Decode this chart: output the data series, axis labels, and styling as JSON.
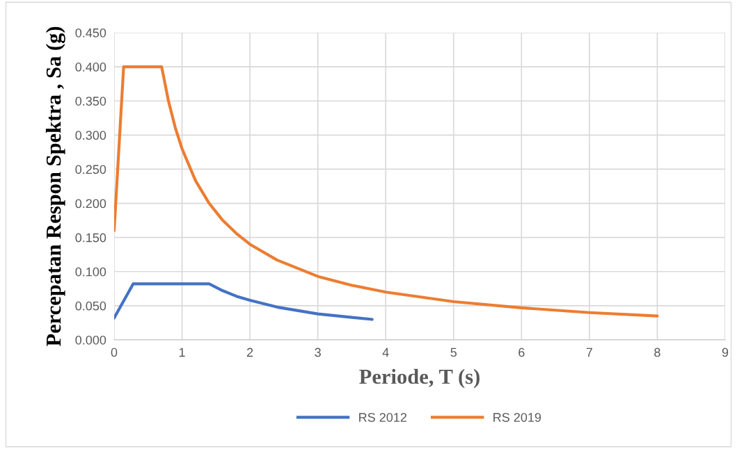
{
  "chart_data": {
    "type": "line",
    "xlabel": "Periode, T (s)",
    "ylabel": "Percepatan Respon Spektra , Sa (g)",
    "xlim": [
      0,
      9
    ],
    "xticks": [
      0,
      1,
      2,
      3,
      4,
      5,
      6,
      7,
      8,
      9
    ],
    "ylim": [
      0,
      0.45
    ],
    "yticks": [
      {
        "value": 0,
        "label": "0.000"
      },
      {
        "value": 0.05,
        "label": "0.050"
      },
      {
        "value": 0.1,
        "label": "0.100"
      },
      {
        "value": 0.15,
        "label": "0.150"
      },
      {
        "value": 0.2,
        "label": "0.200"
      },
      {
        "value": 0.25,
        "label": "0.250"
      },
      {
        "value": 0.3,
        "label": "0.300"
      },
      {
        "value": 0.35,
        "label": "0.350"
      },
      {
        "value": 0.4,
        "label": "0.400"
      },
      {
        "value": 0.45,
        "label": "0.450"
      }
    ],
    "grid": true,
    "legend": "bottom",
    "marker": "none",
    "line_style": "solid",
    "series": [
      {
        "name": "RS 2012",
        "color": "#4472c4",
        "x": [
          0,
          0.28,
          1.4,
          1.6,
          1.8,
          2.0,
          2.4,
          3.0,
          3.5,
          3.8
        ],
        "values": [
          0.032,
          0.082,
          0.082,
          0.072,
          0.064,
          0.058,
          0.048,
          0.038,
          0.033,
          0.03
        ]
      },
      {
        "name": "RS 2019",
        "color": "#ed7d31",
        "x": [
          0,
          0.14,
          0.7,
          0.8,
          0.9,
          1.0,
          1.2,
          1.4,
          1.6,
          1.8,
          2.0,
          2.4,
          3.0,
          3.5,
          4.0,
          5.0,
          6.0,
          7.0,
          8.0
        ],
        "values": [
          0.16,
          0.4,
          0.4,
          0.35,
          0.311,
          0.28,
          0.233,
          0.2,
          0.175,
          0.156,
          0.14,
          0.117,
          0.093,
          0.08,
          0.07,
          0.056,
          0.047,
          0.04,
          0.035
        ]
      }
    ]
  }
}
